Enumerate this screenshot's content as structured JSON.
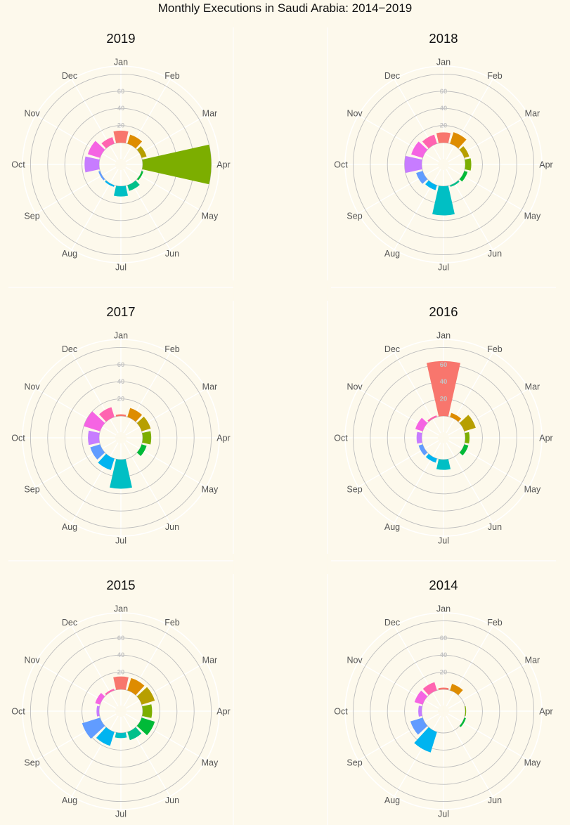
{
  "page": {
    "title": "Monthly Executions in Saudi Arabia: 2014−2019",
    "background": "#fdf9ec",
    "panel_background": "#fdf9ec",
    "grid_color": "#bdbdbd",
    "title_color": "#111111",
    "label_color": "#555555",
    "tick_label_color": "#c4c4c4"
  },
  "chart_data": {
    "type": "bar",
    "coord": "polar",
    "layout": "small-multiples 2x3",
    "months": [
      "Jan",
      "Feb",
      "Mar",
      "Apr",
      "May",
      "Jun",
      "Jul",
      "Aug",
      "Sep",
      "Oct",
      "Nov",
      "Dec"
    ],
    "month_colors": [
      "#F8766D",
      "#DE8C00",
      "#B79F00",
      "#7CAE00",
      "#00BA38",
      "#00C08B",
      "#00BFC4",
      "#00B4F0",
      "#619CFF",
      "#C77CFF",
      "#F564E3",
      "#FF64B0"
    ],
    "radial_ticks": [
      "20",
      "40",
      "60"
    ],
    "radial_tick_values": [
      20,
      40,
      60
    ],
    "radial_grid": [
      0,
      20,
      40,
      60,
      80
    ],
    "ylim": [
      -20,
      80
    ],
    "panels": [
      {
        "year": "2019",
        "values": [
          14,
          11,
          6,
          80,
          2,
          7,
          12,
          2,
          2,
          17,
          15,
          8
        ]
      },
      {
        "year": "2018",
        "values": [
          12,
          14,
          6,
          7,
          4,
          2,
          34,
          6,
          8,
          20,
          14,
          11
        ]
      },
      {
        "year": "2017",
        "values": [
          2,
          11,
          11,
          10,
          6,
          0,
          34,
          14,
          12,
          13,
          20,
          12
        ]
      },
      {
        "year": "2016",
        "values": [
          64,
          5,
          14,
          5,
          5,
          0,
          12,
          5,
          5,
          6,
          9,
          2
        ]
      },
      {
        "year": "2015",
        "values": [
          15,
          15,
          16,
          11,
          16,
          10,
          6,
          17,
          22,
          3,
          6,
          2
        ]
      },
      {
        "year": "2014",
        "values": [
          2,
          8,
          0,
          1,
          2,
          0,
          0,
          25,
          15,
          4,
          10,
          10
        ]
      }
    ]
  }
}
